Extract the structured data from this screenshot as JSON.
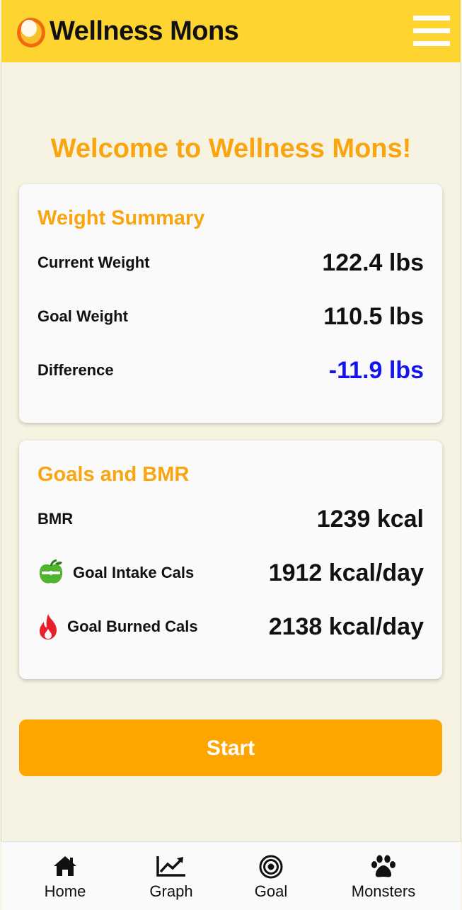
{
  "header": {
    "app_title": "Wellness Mons",
    "brand_color": "#fed530",
    "logo_icon": "orange-egg-logo-icon",
    "menu_icon": "hamburger-menu-icon"
  },
  "welcome": {
    "title": "Welcome to Wellness Mons!"
  },
  "weight_summary": {
    "title": "Weight Summary",
    "rows": [
      {
        "label": "Current Weight",
        "value": "122.4 lbs"
      },
      {
        "label": "Goal Weight",
        "value": "110.5 lbs"
      },
      {
        "label": "Difference",
        "value": "-11.9 lbs",
        "value_color": "#1414ee"
      }
    ]
  },
  "goals_bmr": {
    "title": "Goals and BMR",
    "rows": [
      {
        "label": "BMR",
        "value": "1239 kcal"
      },
      {
        "label": "Goal Intake Cals",
        "value": "1912 kcal/day",
        "icon": "apple-icon"
      },
      {
        "label": "Goal Burned Cals",
        "value": "2138 kcal/day",
        "icon": "fire-icon"
      }
    ]
  },
  "start_button": {
    "label": "Start",
    "color": "#fea500"
  },
  "bottom_nav": {
    "items": [
      {
        "label": "Home",
        "icon": "home-icon"
      },
      {
        "label": "Graph",
        "icon": "graph-icon"
      },
      {
        "label": "Goal",
        "icon": "target-icon"
      },
      {
        "label": "Monsters",
        "icon": "paw-icon"
      }
    ]
  }
}
